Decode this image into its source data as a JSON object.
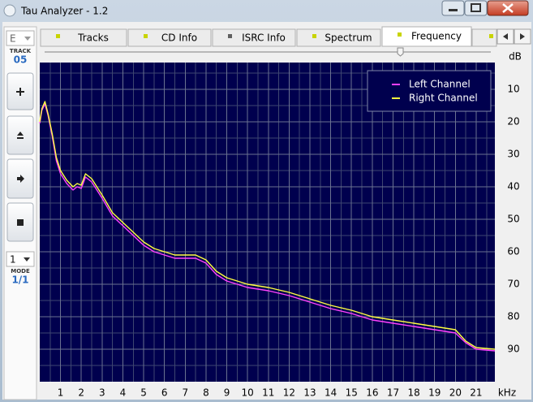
{
  "window": {
    "title": "Tau Analyzer - 1.2"
  },
  "left_panel": {
    "track_select": "E",
    "track_label": "TRACK",
    "track_number": "05",
    "mode_select": "1",
    "mode_label": "MODE",
    "mode_value": "1/1"
  },
  "tabs": [
    {
      "label": "Tracks"
    },
    {
      "label": "CD Info"
    },
    {
      "label": "ISRC Info"
    },
    {
      "label": "Spectrum"
    },
    {
      "label": "Frequency",
      "selected": true
    }
  ],
  "chart_data": {
    "type": "line",
    "y_unit": "dB",
    "x_unit": "kHz",
    "xlim": [
      0,
      21.9
    ],
    "xticks": [
      1,
      2,
      3,
      4,
      5,
      6,
      7,
      8,
      9,
      10,
      11,
      12,
      13,
      14,
      15,
      16,
      17,
      18,
      19,
      20,
      21
    ],
    "ylim": [
      1.75,
      100
    ],
    "yticks": [
      10,
      20,
      30,
      40,
      50,
      60,
      70,
      80,
      90
    ],
    "grid": true,
    "legend": "top-right",
    "x": [
      0,
      0.1,
      0.25,
      0.4,
      0.6,
      0.8,
      1.0,
      1.3,
      1.6,
      1.8,
      2.0,
      2.2,
      2.5,
      3.0,
      3.5,
      4.0,
      4.5,
      5.0,
      5.5,
      6.0,
      6.5,
      7.0,
      7.5,
      8.0,
      8.5,
      9.0,
      10,
      11,
      12,
      13,
      14,
      15,
      16,
      17,
      18,
      19,
      20,
      20.5,
      21,
      21.9
    ],
    "series": [
      {
        "name": "Left Channel",
        "color": "#ff40ff",
        "values": [
          20.5,
          16.5,
          14.5,
          18,
          24.5,
          32,
          36,
          39,
          41,
          40,
          40.5,
          37,
          38.5,
          43.5,
          49,
          52,
          55,
          58,
          60,
          61,
          62,
          62,
          62,
          63.5,
          67,
          69,
          71,
          72,
          73.5,
          75.5,
          77.5,
          79,
          81,
          82,
          83,
          84,
          85,
          88,
          90,
          90.5
        ]
      },
      {
        "name": "Right Channel",
        "color": "#ffff40",
        "values": [
          20,
          16,
          13.75,
          17.5,
          23.75,
          31,
          35,
          38,
          40,
          39,
          39.5,
          36,
          37.5,
          42.5,
          48,
          51,
          54,
          57,
          59,
          60,
          61,
          61,
          61,
          62.5,
          66,
          68,
          70,
          71,
          72.5,
          74.5,
          76.5,
          78,
          80,
          81,
          82,
          83,
          84,
          87.5,
          89.5,
          90
        ]
      }
    ]
  }
}
